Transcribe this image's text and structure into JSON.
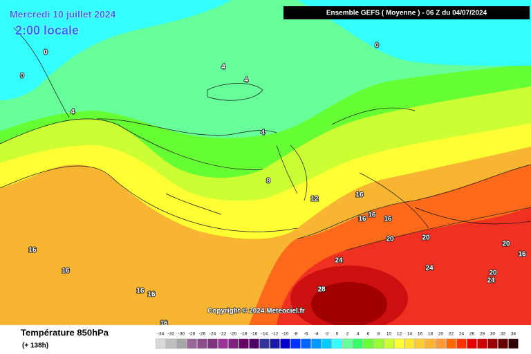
{
  "header": {
    "date": "Mercredi 10 juillet 2024",
    "time": "2:00 locale",
    "run": "Ensemble GEFS  ( Moyenne )  -  06 Z du 04/07/2024"
  },
  "map": {
    "contour_labels": [
      0,
      0,
      0,
      4,
      4,
      4,
      4,
      8,
      12,
      16,
      16,
      16,
      16,
      16,
      16,
      16,
      16,
      16,
      16,
      20,
      20,
      20,
      20,
      24,
      24,
      24,
      28
    ],
    "copyright": "Copyright © 2024 Meteociel.fr"
  },
  "legend": {
    "title": "Température 850hPa",
    "lead": "(+ 138h)",
    "scale": [
      -34,
      -32,
      -30,
      -28,
      -26,
      -24,
      -22,
      -20,
      -18,
      -16,
      -14,
      -12,
      -10,
      -8,
      -6,
      -4,
      -2,
      0,
      2,
      4,
      6,
      8,
      10,
      12,
      14,
      16,
      18,
      20,
      22,
      24,
      26,
      28,
      30,
      32,
      34
    ],
    "colors": [
      "#d9d9d9",
      "#bfbfbf",
      "#a6a6a6",
      "#996699",
      "#8c4d8c",
      "#7f337f",
      "#993399",
      "#802080",
      "#660066",
      "#4d0066",
      "#333399",
      "#1a1aa6",
      "#0000cc",
      "#0033ff",
      "#0066ff",
      "#0099ff",
      "#00ccff",
      "#33ffff",
      "#66ff99",
      "#33ff66",
      "#66ff33",
      "#99ff33",
      "#ccff33",
      "#ffff33",
      "#ffe633",
      "#ffcc33",
      "#ffb333",
      "#ff9933",
      "#ff6600",
      "#ff3300",
      "#e60000",
      "#cc0000",
      "#990000",
      "#660000",
      "#330000"
    ]
  }
}
